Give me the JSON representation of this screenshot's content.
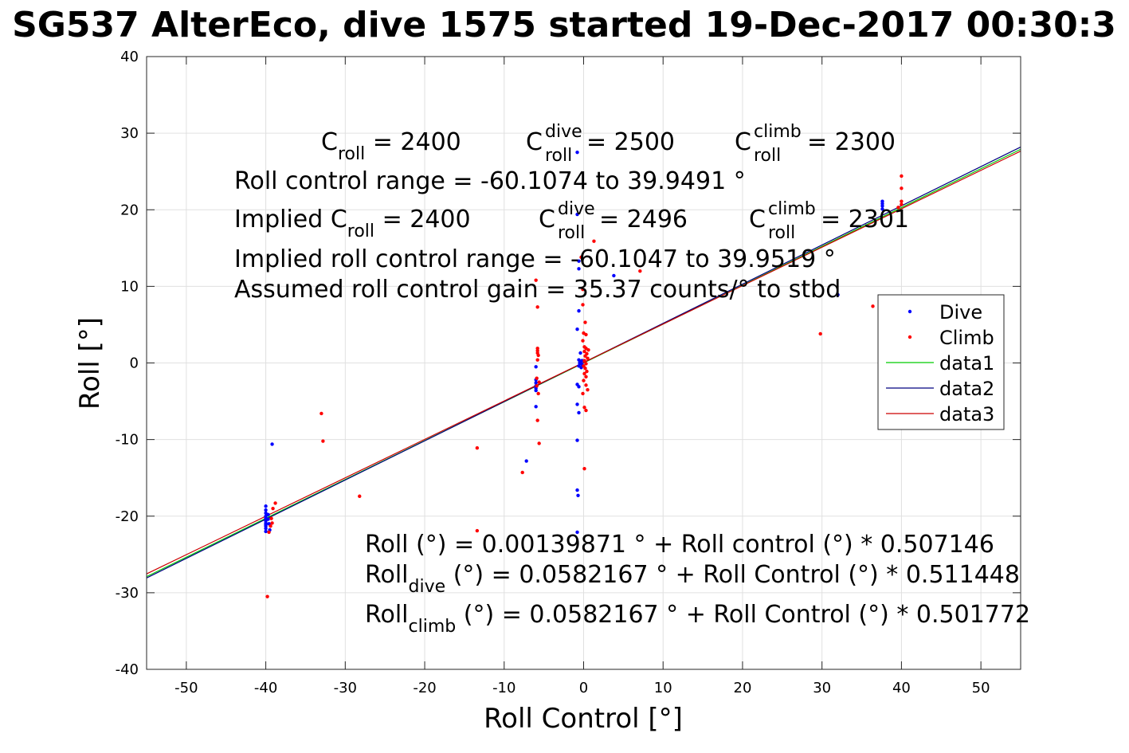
{
  "chart_data": {
    "type": "scatter",
    "title": "SG537 AlterEco, dive 1575 started 19-Dec-2017 00:30:3",
    "xlabel": "Roll Control [°]",
    "ylabel": "Roll [°]",
    "xlim": [
      -55,
      55
    ],
    "ylim": [
      -40,
      40
    ],
    "xticks": [
      -50,
      -40,
      -30,
      -20,
      -10,
      0,
      10,
      20,
      30,
      40,
      50
    ],
    "yticks": [
      -40,
      -30,
      -20,
      -10,
      0,
      10,
      20,
      30,
      40
    ],
    "grid": true,
    "legend_position": "right",
    "legend": [
      {
        "label": "Dive",
        "kind": "marker",
        "color": "#0000ff"
      },
      {
        "label": "Climb",
        "kind": "marker",
        "color": "#ff0000"
      },
      {
        "label": "data1",
        "kind": "line",
        "color": "#00cc00"
      },
      {
        "label": "data2",
        "kind": "line",
        "color": "#000080"
      },
      {
        "label": "data3",
        "kind": "line",
        "color": "#cc0000"
      }
    ],
    "lines": [
      {
        "label": "data1",
        "color": "#00cc00",
        "intercept": 0.00139871,
        "slope": 0.507146
      },
      {
        "label": "data2",
        "color": "#000080",
        "intercept": 0.0582167,
        "slope": 0.511448
      },
      {
        "label": "data3",
        "color": "#cc0000",
        "intercept": 0.0582167,
        "slope": 0.501772
      }
    ],
    "series": [
      {
        "name": "Dive",
        "color": "#0000ff",
        "points": [
          [
            -40,
            -18.7
          ],
          [
            -40,
            -19.2
          ],
          [
            -40,
            -19.6
          ],
          [
            -40,
            -20.0
          ],
          [
            -40,
            -20.3
          ],
          [
            -40,
            -20.6
          ],
          [
            -40,
            -20.9
          ],
          [
            -40,
            -21.1
          ],
          [
            -40,
            -21.3
          ],
          [
            -40,
            -21.6
          ],
          [
            -40,
            -22.0
          ],
          [
            -39.7,
            -19.8
          ],
          [
            -39.7,
            -20.4
          ],
          [
            -39.6,
            -21.0
          ],
          [
            -39.5,
            -21.8
          ],
          [
            -39.2,
            -10.6
          ],
          [
            -6,
            -0.5
          ],
          [
            -6,
            -2.2
          ],
          [
            -6,
            -2.6
          ],
          [
            -6,
            -3.0
          ],
          [
            -6,
            -3.3
          ],
          [
            -6,
            -3.6
          ],
          [
            -6,
            -5.7
          ],
          [
            -7.2,
            -12.8
          ],
          [
            -0.8,
            27.5
          ],
          [
            -0.8,
            19.4
          ],
          [
            -0.6,
            13.3
          ],
          [
            -0.6,
            12.3
          ],
          [
            -0.6,
            6.8
          ],
          [
            -0.8,
            4.4
          ],
          [
            -0.4,
            1.3
          ],
          [
            -0.6,
            0.4
          ],
          [
            -0.4,
            0.1
          ],
          [
            -0.2,
            -0.2
          ],
          [
            -0.6,
            -0.4
          ],
          [
            -0.3,
            -0.6
          ],
          [
            -0.5,
            0.0
          ],
          [
            -0.2,
            0.3
          ],
          [
            -0.8,
            -2.8
          ],
          [
            -0.6,
            -3.1
          ],
          [
            -0.8,
            -5.4
          ],
          [
            -0.6,
            -6.5
          ],
          [
            -0.8,
            -10.1
          ],
          [
            -0.8,
            -16.6
          ],
          [
            -0.7,
            -17.3
          ],
          [
            -0.8,
            -22.1
          ],
          [
            3.8,
            11.4
          ],
          [
            32,
            8.9
          ],
          [
            37.6,
            20.1
          ],
          [
            37.6,
            20.5
          ],
          [
            37.6,
            20.8
          ],
          [
            37.6,
            21.1
          ]
        ]
      },
      {
        "name": "Climb",
        "color": "#ff0000",
        "points": [
          [
            -39.8,
            -30.5
          ],
          [
            -39.6,
            -22.1
          ],
          [
            -39.4,
            -21.3
          ],
          [
            -39.2,
            -20.9
          ],
          [
            -39.3,
            -20.3
          ],
          [
            -39.1,
            -19.0
          ],
          [
            -38.8,
            -18.3
          ],
          [
            -33,
            -6.6
          ],
          [
            -32.8,
            -10.2
          ],
          [
            -28.2,
            -17.4
          ],
          [
            -13.4,
            -11.1
          ],
          [
            -13.4,
            -21.9
          ],
          [
            -7.7,
            -14.3
          ],
          [
            -6,
            10.8
          ],
          [
            -5.8,
            7.3
          ],
          [
            -5.8,
            1.9
          ],
          [
            -5.8,
            1.6
          ],
          [
            -5.8,
            1.3
          ],
          [
            -5.7,
            1.0
          ],
          [
            -5.8,
            0.4
          ],
          [
            -5.9,
            -2.0
          ],
          [
            -5.6,
            -2.5
          ],
          [
            -5.9,
            -3.0
          ],
          [
            -5.7,
            -4.0
          ],
          [
            -5.8,
            -7.5
          ],
          [
            -5.6,
            -10.5
          ],
          [
            -0.3,
            13.8
          ],
          [
            -0.1,
            9.6
          ],
          [
            -0.1,
            7.6
          ],
          [
            0.2,
            5.3
          ],
          [
            0.0,
            3.9
          ],
          [
            0.3,
            3.7
          ],
          [
            -0.1,
            2.9
          ],
          [
            0.1,
            2.1
          ],
          [
            0.3,
            1.9
          ],
          [
            0.6,
            1.7
          ],
          [
            0.1,
            1.5
          ],
          [
            0.4,
            1.2
          ],
          [
            0.2,
            0.9
          ],
          [
            0.5,
            0.6
          ],
          [
            0.1,
            0.3
          ],
          [
            0.3,
            -0.1
          ],
          [
            0.0,
            -0.4
          ],
          [
            0.2,
            -0.7
          ],
          [
            0.4,
            -1.1
          ],
          [
            0.1,
            -1.4
          ],
          [
            0.3,
            -1.8
          ],
          [
            0.0,
            -2.3
          ],
          [
            0.3,
            -2.9
          ],
          [
            0.5,
            -3.5
          ],
          [
            -0.1,
            -4.0
          ],
          [
            0.1,
            -5.8
          ],
          [
            0.3,
            -6.2
          ],
          [
            0.1,
            -13.8
          ],
          [
            1.3,
            15.9
          ],
          [
            7.1,
            12.0
          ],
          [
            29.8,
            3.8
          ],
          [
            36.4,
            7.4
          ],
          [
            40,
            24.4
          ],
          [
            40,
            22.8
          ],
          [
            40,
            21.1
          ],
          [
            40,
            20.7
          ],
          [
            39.6,
            20.3
          ]
        ]
      }
    ],
    "annotations_top": {
      "c_roll": {
        "base": "C",
        "sub": "roll",
        "value": " = 2400"
      },
      "c_roll_dive": {
        "base": "C",
        "sup": "dive",
        "sub": "roll",
        "value": " = 2500"
      },
      "c_roll_climb": {
        "base": "C",
        "sup": "climb",
        "sub": "roll",
        "value": " = 2300"
      },
      "range_line": "Roll control range = -60.1074 to 39.9491 °",
      "implied_prefix": "Implied C",
      "implied_sub": "roll",
      "implied_value": " = 2400",
      "implied_dive": {
        "base": "C",
        "sup": "dive",
        "sub": "roll",
        "value": " = 2496"
      },
      "implied_climb": {
        "base": "C",
        "sup": "climb",
        "sub": "roll",
        "value": " = 2301"
      },
      "implied_range_line": "Implied roll control range = -60.1047 to 39.9519 °",
      "gain_line": "Assumed roll control gain = 35.37 counts/° to stbd"
    },
    "annotations_bottom": {
      "fit_line": "Roll (°) = 0.00139871 ° + Roll control (°) * 0.507146",
      "dive_base": "Roll",
      "dive_sub": "dive",
      "dive_rest": " (°) = 0.0582167 ° + Roll Control (°) * 0.511448",
      "climb_base": "Roll",
      "climb_sub": "climb",
      "climb_rest": " (°) = 0.0582167 ° + Roll Control (°) * 0.501772"
    }
  }
}
